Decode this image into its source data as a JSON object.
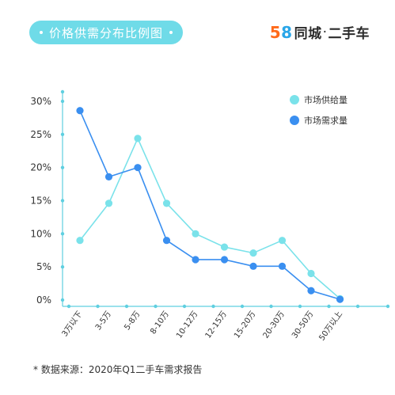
{
  "header": {
    "title": "价格供需分布比例图",
    "brand_number": "58",
    "brand_text": "同城",
    "brand_dot": "·",
    "brand_suffix": "二手车"
  },
  "footnote": "* 数据来源：2020年Q1二手车需求报告",
  "colors": {
    "title_pill": "#6fdbe8",
    "supply": "#7ae2ea",
    "demand": "#3a8ff0",
    "axis": "#5fcfe0"
  },
  "chart_data": {
    "type": "line",
    "categories": [
      "3万以下",
      "3-5万",
      "5-8万",
      "8-10万",
      "10-12万",
      "12-15万",
      "15-20万",
      "20-30万",
      "30-50万",
      "50万以上"
    ],
    "series": [
      {
        "name": "市场供给量",
        "values": [
          9,
          14.6,
          24.4,
          14.6,
          10,
          8,
          7.1,
          9,
          4,
          0.2
        ]
      },
      {
        "name": "市场需求量",
        "values": [
          28.6,
          18.6,
          20,
          9,
          6.1,
          6.1,
          5.1,
          5.1,
          1.4,
          0.1
        ]
      }
    ],
    "yticks": [
      "0%",
      "5%",
      "10%",
      "15%",
      "20%",
      "25%",
      "30%"
    ],
    "ylim": [
      0,
      30
    ],
    "legend_position": "top-right",
    "grid": false
  }
}
